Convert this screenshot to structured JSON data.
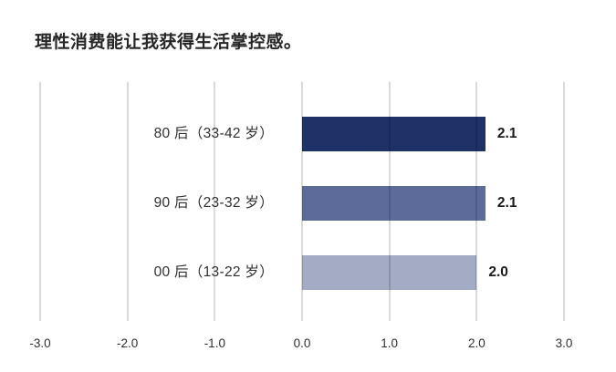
{
  "title": "理性消费能让我获得生活掌控感。",
  "chart_data": {
    "type": "bar",
    "orientation": "horizontal",
    "title": "理性消费能让我获得生活掌控感。",
    "categories": [
      "80 后（33-42 岁）",
      "90 后（23-32 岁）",
      "00 后（13-22 岁）"
    ],
    "values": [
      2.1,
      2.1,
      2.0
    ],
    "value_labels": [
      "2.1",
      "2.1",
      "2.0"
    ],
    "bar_colors": [
      "#1e3268",
      "#5c6b99",
      "#a4abc5"
    ],
    "x_ticks": [
      -3.0,
      -2.0,
      -1.0,
      0.0,
      1.0,
      2.0,
      3.0
    ],
    "x_tick_labels": [
      "-3.0",
      "-2.0",
      "-1.0",
      "0.0",
      "1.0",
      "2.0",
      "3.0"
    ],
    "xlim": [
      -3.0,
      3.0
    ],
    "grid": true,
    "legend": false,
    "xlabel": "",
    "ylabel": ""
  },
  "colors": {
    "background": "#ffffff",
    "gridline": "#d9d9d9",
    "title_text": "#262626",
    "label_text": "#303030"
  }
}
